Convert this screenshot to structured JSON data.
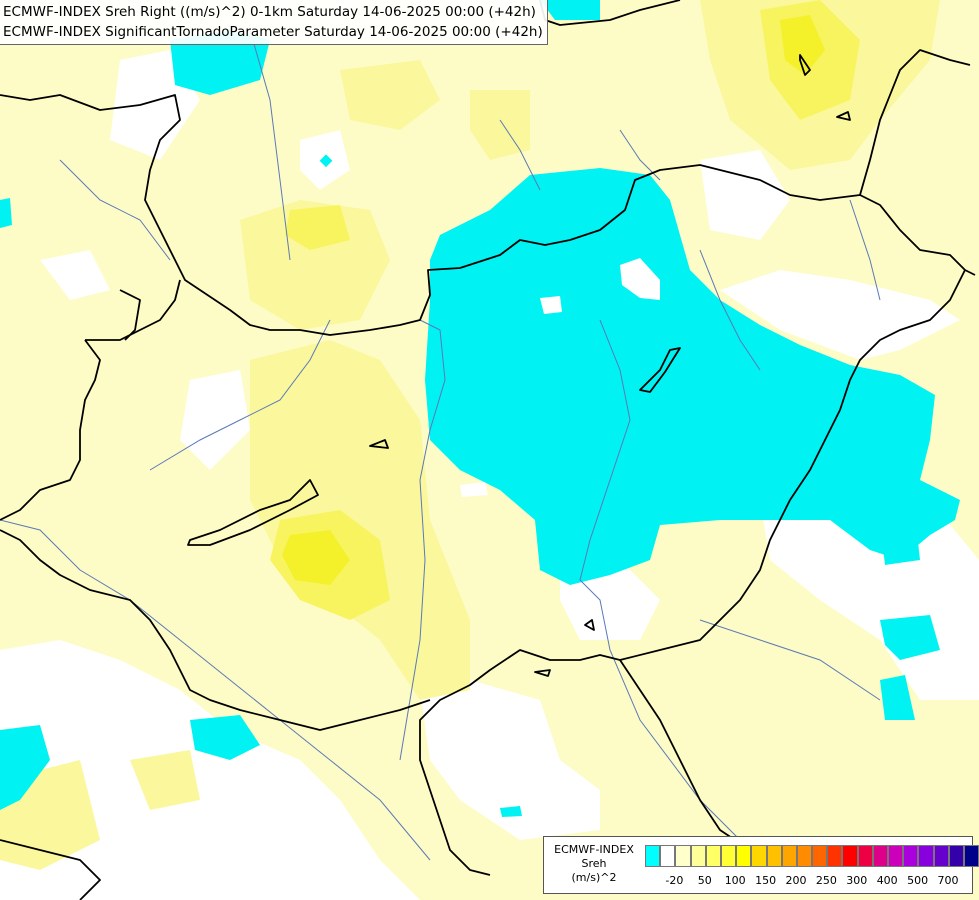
{
  "header": {
    "line1": "ECMWF-INDEX Sreh Right ((m/s)^2) 0-1km Saturday 14-06-2025 00:00 (+42h)",
    "line2": "ECMWF-INDEX SignificantTornadoParameter Saturday 14-06-2025 00:00 (+42h)"
  },
  "legend": {
    "model": "ECMWF-INDEX",
    "variable": "Sreh",
    "unit": "(m/s)^2",
    "colors": [
      "#00ffff",
      "#ffffff",
      "#ffffcc",
      "#ffff99",
      "#ffff66",
      "#ffff33",
      "#ffff00",
      "#ffd700",
      "#ffc000",
      "#ffa500",
      "#ff8c00",
      "#ff6600",
      "#ff3300",
      "#ff0000",
      "#ee0044",
      "#dd0088",
      "#cc00bb",
      "#aa00dd",
      "#8800dd",
      "#6600cc",
      "#3300aa",
      "#000088"
    ],
    "ticks": [
      {
        "label": "-20",
        "slot": 1
      },
      {
        "label": "50",
        "slot": 3
      },
      {
        "label": "100",
        "slot": 5
      },
      {
        "label": "150",
        "slot": 7
      },
      {
        "label": "200",
        "slot": 9
      },
      {
        "label": "250",
        "slot": 11
      },
      {
        "label": "300",
        "slot": 13
      },
      {
        "label": "400",
        "slot": 15
      },
      {
        "label": "500",
        "slot": 17
      },
      {
        "label": "700",
        "slot": 19
      }
    ]
  },
  "map": {
    "colors": {
      "background": "#fdfcc6",
      "cyan": "#00f2f2",
      "white": "#ffffff",
      "light_yellow": "#fbf79c",
      "yellow": "#f8f460",
      "bright_yellow": "#f4f02a",
      "border": "#000000",
      "river": "#5b79b8"
    }
  }
}
